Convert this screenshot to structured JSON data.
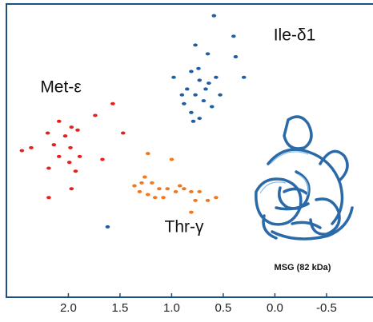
{
  "chart_data": {
    "type": "scatter",
    "annotation": "MSG (82 kDa)",
    "xlim": [
      2.6,
      -0.95
    ],
    "ylim": [
      0,
      100
    ],
    "xticks": [
      {
        "value": 2,
        "label": "2.0"
      },
      1.5,
      {
        "value": 1,
        "label": "1.0"
      },
      0.5,
      {
        "value": 0,
        "label": "0.0"
      },
      -0.5
    ],
    "series": [
      {
        "name": "Ile-δ1",
        "color": "#1f5f9f",
        "x": [
          0.59,
          0.4,
          0.77,
          0.38,
          0.65,
          0.98,
          0.81,
          0.73,
          0.85,
          0.64,
          0.57,
          0.77,
          0.69,
          0.88,
          0.61,
          0.81,
          0.73,
          0.9,
          0.53,
          0.67,
          0.3,
          0.74,
          0.79,
          1.62
        ],
        "values": [
          96,
          89,
          86,
          82,
          83,
          75,
          77,
          74,
          71,
          73,
          75,
          69,
          67,
          66,
          65,
          63,
          61,
          69,
          69,
          71,
          75,
          78,
          60,
          24
        ]
      },
      {
        "name": "Met-ε",
        "color": "#e8201c",
        "x": [
          1.57,
          1.74,
          1.47,
          2.09,
          1.97,
          2.2,
          2.03,
          1.91,
          2.14,
          1.98,
          2.36,
          2.09,
          1.89,
          2.45,
          1.99,
          1.93,
          2.19,
          1.97,
          2.19,
          1.67
        ],
        "values": [
          66,
          62,
          56,
          60,
          58,
          56,
          55,
          57,
          52,
          51,
          51,
          48,
          48,
          50,
          46,
          43,
          44,
          37,
          34,
          47
        ]
      },
      {
        "name": "Thr-γ",
        "color": "#f07820",
        "x": [
          1.23,
          1.0,
          1.29,
          1.19,
          1.12,
          1.04,
          1.31,
          1.23,
          0.96,
          0.81,
          0.73,
          1.36,
          1.16,
          0.88,
          1.08,
          0.65,
          0.77,
          0.92,
          0.57,
          0.81,
          1.26
        ],
        "values": [
          49,
          47,
          39,
          39,
          37,
          37,
          36,
          35,
          36,
          36,
          36,
          38,
          34,
          37,
          34,
          33,
          33,
          38,
          34,
          29,
          41
        ]
      }
    ]
  }
}
